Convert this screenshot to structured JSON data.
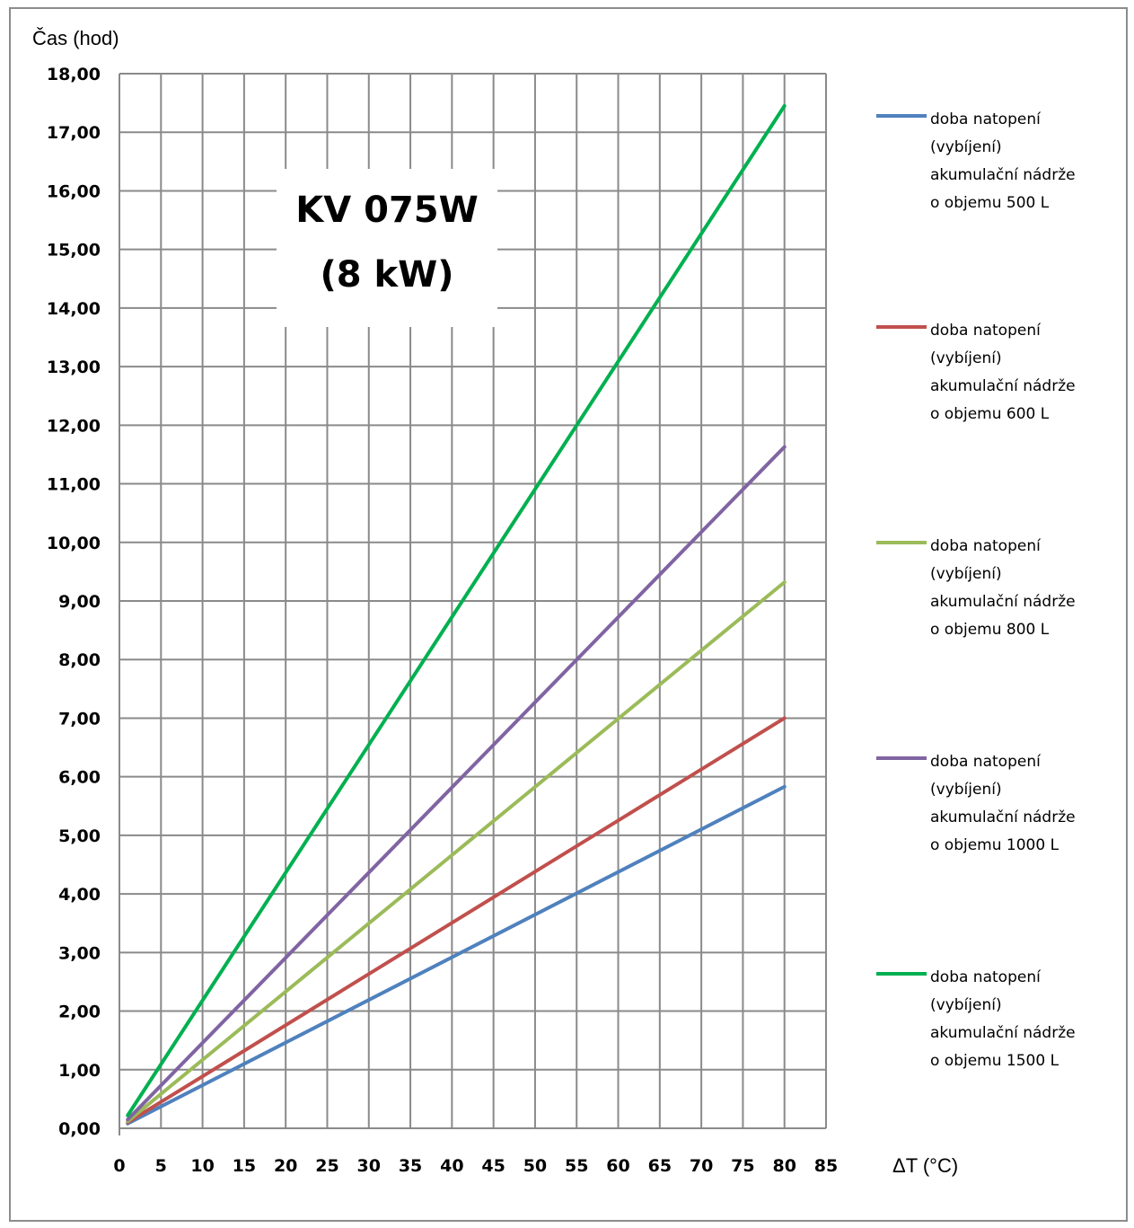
{
  "chart_data": {
    "type": "line",
    "title": "KV 075W\n(8 kW)",
    "title_lines": [
      "KV 075W",
      "(8 kW)"
    ],
    "ylabel": "Čas (hod)",
    "xlabel": "ΔT  (°C)",
    "xlim": [
      0,
      85
    ],
    "ylim": [
      0,
      18
    ],
    "x_ticks": [
      "0",
      "5",
      "10",
      "15",
      "20",
      "25",
      "30",
      "35",
      "40",
      "45",
      "50",
      "55",
      "60",
      "65",
      "70",
      "75",
      "80",
      "85"
    ],
    "y_ticks": [
      "0,00",
      "1,00",
      "2,00",
      "3,00",
      "4,00",
      "5,00",
      "6,00",
      "7,00",
      "8,00",
      "9,00",
      "10,00",
      "11,00",
      "12,00",
      "13,00",
      "14,00",
      "15,00",
      "16,00",
      "17,00",
      "18,00"
    ],
    "grid": true,
    "legend_position": "right",
    "x": [
      1,
      80
    ],
    "series": [
      {
        "name": "doba natopení (vybíjení) akumulační nádrže o objemu 500 L",
        "legend_lines": [
          "doba natopení",
          "(vybíjení)",
          "akumulační nádrže",
          "o objemu 500 L"
        ],
        "color": "#4f81bd",
        "values": [
          0.08,
          5.83
        ]
      },
      {
        "name": "doba natopení (vybíjení) akumulační nádrže o objemu 600 L",
        "legend_lines": [
          "doba natopení",
          "(vybíjení)",
          "akumulační nádrže",
          "o objemu 600 L"
        ],
        "color": "#c0504d",
        "values": [
          0.1,
          7.0
        ]
      },
      {
        "name": "doba natopení (vybíjení) akumulační nádrže o objemu 800 L",
        "legend_lines": [
          "doba natopení",
          "(vybíjení)",
          "akumulační nádrže",
          "o objemu 800 L"
        ],
        "color": "#9bbb59",
        "values": [
          0.12,
          9.32
        ]
      },
      {
        "name": "doba natopení (vybíjení) akumulační nádrže o objemu 1000 L",
        "legend_lines": [
          "doba natopení",
          "(vybíjení)",
          "akumulační nádrže",
          "o objemu 1000 L"
        ],
        "color": "#8064a2",
        "values": [
          0.15,
          11.63
        ]
      },
      {
        "name": "doba natopení (vybíjení) akumulační nádrže o objemu 1500 L",
        "legend_lines": [
          "doba natopení",
          "(vybíjení)",
          "akumulační nádrže",
          "o objemu 1500 L"
        ],
        "color": "#00b050",
        "values": [
          0.22,
          17.45
        ]
      }
    ]
  }
}
